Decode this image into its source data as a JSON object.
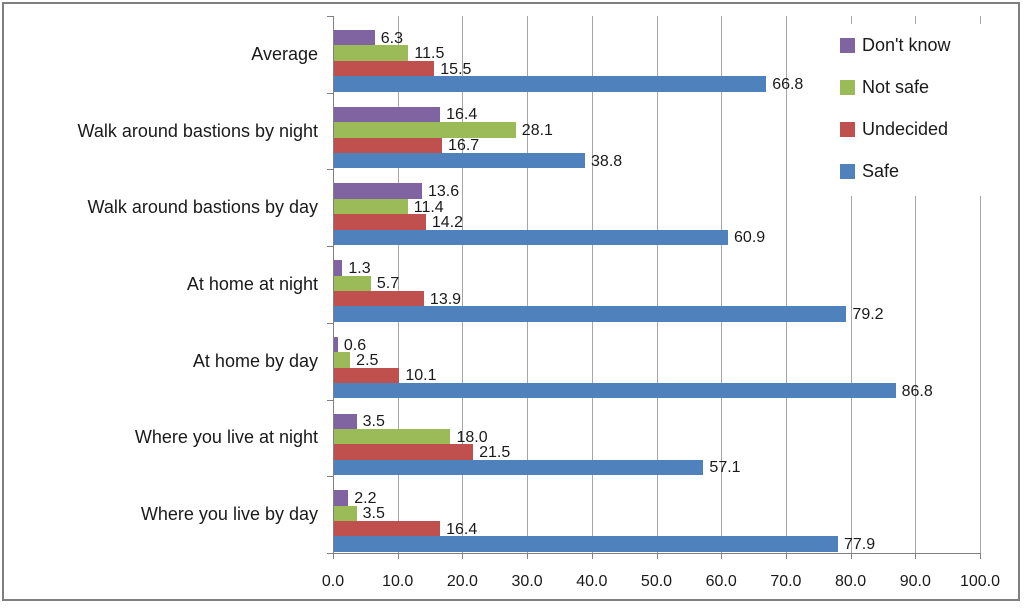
{
  "chart_data": {
    "type": "bar",
    "orientation": "horizontal",
    "title": "",
    "xlabel": "",
    "ylabel": "",
    "xlim": [
      0,
      100
    ],
    "grid": true,
    "legend_position": "top-right",
    "value_labels_shown": true,
    "categories": [
      "Average",
      "Walk around bastions by night",
      "Walk around bastions by day",
      "At home at night",
      "At home by day",
      "Where you live at night",
      "Where you live by day"
    ],
    "series": [
      {
        "name": "Don't know",
        "color": "#8064A2",
        "values": [
          6.3,
          16.4,
          13.6,
          1.3,
          0.6,
          3.5,
          2.2
        ]
      },
      {
        "name": "Not safe",
        "color": "#9BBB59",
        "values": [
          11.5,
          28.1,
          11.4,
          5.7,
          2.5,
          18.0,
          3.5
        ]
      },
      {
        "name": "Undecided",
        "color": "#C0504D",
        "values": [
          15.5,
          16.7,
          14.2,
          13.9,
          10.1,
          21.5,
          16.4
        ]
      },
      {
        "name": "Safe",
        "color": "#4F81BD",
        "values": [
          66.8,
          38.8,
          60.9,
          79.2,
          86.8,
          57.1,
          77.9
        ]
      }
    ],
    "xtick_values": [
      0,
      10,
      20,
      30,
      40,
      50,
      60,
      70,
      80,
      90,
      100
    ],
    "xtick_labels": [
      "0.0",
      "10.0",
      "20.0",
      "30.0",
      "40.0",
      "50.0",
      "60.0",
      "70.0",
      "80.0",
      "90.0",
      "100.0"
    ]
  },
  "colors": {
    "background": "#FFFFFF",
    "frame_border": "#7F7F7F",
    "gridline": "#A6A6A6",
    "axis": "#808080",
    "text": "#1A1A1A"
  }
}
